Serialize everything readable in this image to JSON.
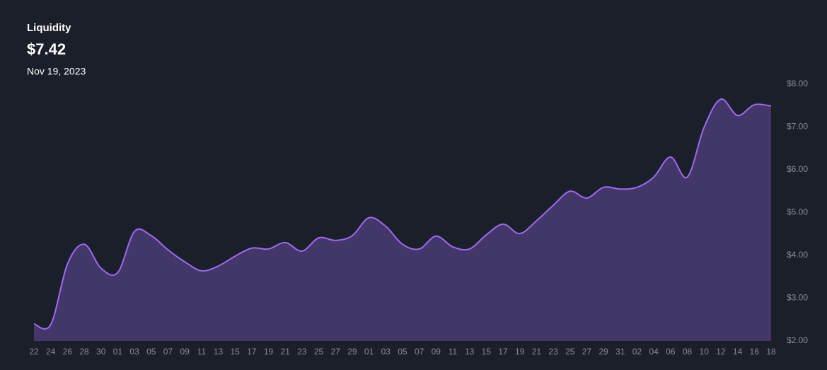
{
  "header": {
    "title": "Liquidity",
    "value": "$7.42",
    "date": "Nov 19, 2023"
  },
  "chart_data": {
    "type": "area",
    "color": "#9b6cf0",
    "fill": "#433669",
    "categories": [
      "22",
      "24",
      "26",
      "28",
      "30",
      "01",
      "03",
      "05",
      "07",
      "09",
      "11",
      "13",
      "15",
      "17",
      "19",
      "21",
      "23",
      "25",
      "27",
      "29",
      "01",
      "03",
      "05",
      "07",
      "09",
      "11",
      "13",
      "15",
      "17",
      "19",
      "21",
      "23",
      "25",
      "27",
      "29",
      "31",
      "02",
      "04",
      "06",
      "08",
      "10",
      "12",
      "14",
      "16",
      "18"
    ],
    "values": [
      2.4,
      2.38,
      3.8,
      4.26,
      3.7,
      3.6,
      4.56,
      4.46,
      4.13,
      3.85,
      3.64,
      3.75,
      3.98,
      4.17,
      4.15,
      4.3,
      4.1,
      4.41,
      4.35,
      4.46,
      4.88,
      4.68,
      4.26,
      4.15,
      4.45,
      4.2,
      4.15,
      4.48,
      4.73,
      4.51,
      4.81,
      5.17,
      5.5,
      5.34,
      5.59,
      5.55,
      5.59,
      5.83,
      6.3,
      5.83,
      6.99,
      7.65,
      7.27,
      7.52,
      7.49
    ],
    "ylim": [
      2,
      8
    ],
    "yticks": [
      {
        "value": 2,
        "label": "$2.00"
      },
      {
        "value": 3,
        "label": "$3.00"
      },
      {
        "value": 4,
        "label": "$4.00"
      },
      {
        "value": 5,
        "label": "$5.00"
      },
      {
        "value": 6,
        "label": "$6.00"
      },
      {
        "value": 7,
        "label": "$7.00"
      },
      {
        "value": 8,
        "label": "$8.00"
      }
    ]
  }
}
